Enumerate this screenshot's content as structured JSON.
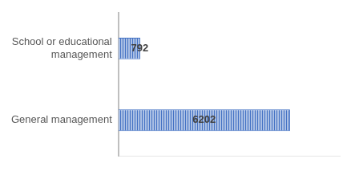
{
  "chart_data": {
    "type": "bar",
    "orientation": "horizontal",
    "categories": [
      "School or educational management",
      "General management"
    ],
    "values": [
      792,
      6202
    ],
    "color": "#4472c4",
    "xlim": [
      0,
      8000
    ],
    "grid": false,
    "data_labels": true,
    "tick_labels": "y"
  }
}
